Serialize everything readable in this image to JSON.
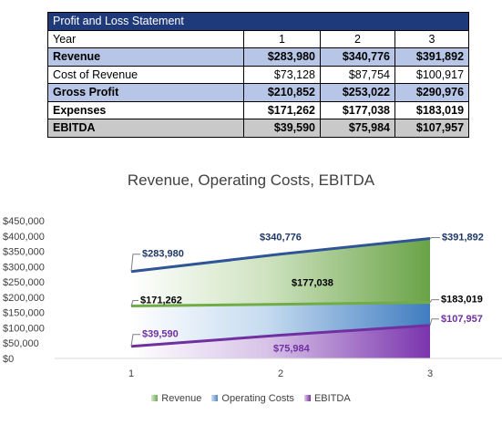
{
  "table": {
    "title": "Profit and Loss Statement",
    "header": {
      "label": "Year",
      "cols": [
        "1",
        "2",
        "3"
      ]
    },
    "rows": [
      {
        "label": "Revenue",
        "values": [
          "$283,980",
          "$340,776",
          "$391,892"
        ]
      },
      {
        "label": "Cost of Revenue",
        "values": [
          "$73,128",
          "$87,754",
          "$100,917"
        ]
      },
      {
        "label": "Gross Profit",
        "values": [
          "$210,852",
          "$253,022",
          "$290,976"
        ]
      },
      {
        "label": "Expenses",
        "values": [
          "$171,262",
          "$177,038",
          "$183,019"
        ]
      },
      {
        "label": "EBITDA",
        "values": [
          "$39,590",
          "$75,984",
          "$107,957"
        ]
      }
    ]
  },
  "chart_data": {
    "type": "area",
    "title": "Revenue, Operating Costs, EBITDA",
    "categories": [
      "1",
      "2",
      "3"
    ],
    "y_ticks": [
      "$0",
      "$50,000",
      "$100,000",
      "$150,000",
      "$200,000",
      "$250,000",
      "$300,000",
      "$350,000",
      "$400,000",
      "$450,000"
    ],
    "ylim": [
      0,
      450000
    ],
    "legend_position": "bottom",
    "series": [
      {
        "name": "Revenue",
        "values": [
          283980,
          340776,
          391892
        ],
        "labels": [
          "$283,980",
          "$340,776",
          "$391,892"
        ],
        "color": "#6fa84a",
        "line_color": "#2f5597",
        "label_color": "#1f3864"
      },
      {
        "name": "Operating Costs",
        "values": [
          171262,
          177038,
          183019
        ],
        "labels": [
          "$171,262",
          "$177,038",
          "$183,019"
        ],
        "color": "#4f86c6",
        "line_color": "#70ad47",
        "label_color": "#000000"
      },
      {
        "name": "EBITDA",
        "values": [
          39590,
          75984,
          107957
        ],
        "labels": [
          "$39,590",
          "$75,984",
          "$107,957"
        ],
        "color": "#7030a0",
        "line_color": "#7030a0",
        "label_color": "#7030a0"
      }
    ]
  }
}
